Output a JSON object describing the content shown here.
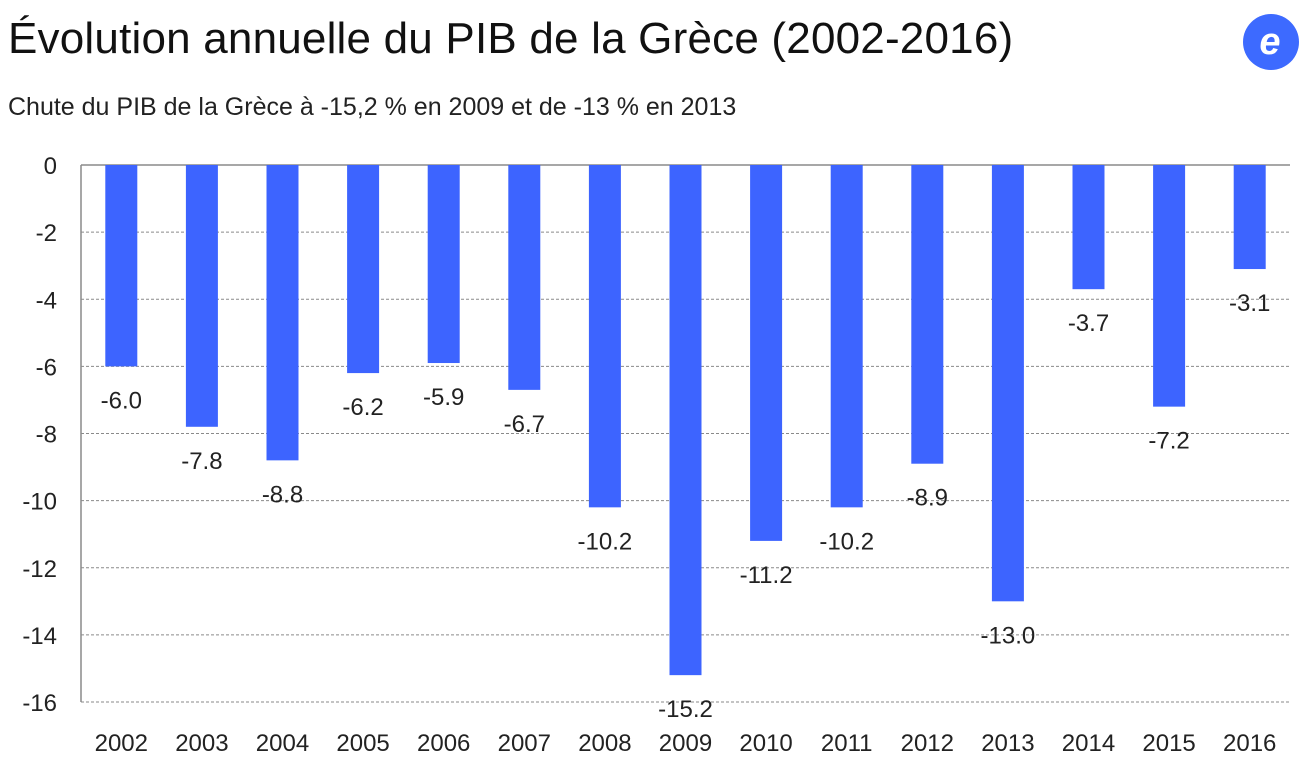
{
  "header": {
    "title": "Évolution annuelle du PIB de la Grèce (2002-2016)",
    "subtitle": "Chute du PIB de la Grèce à -15,2 % en 2009 et de -13 % en 2013"
  },
  "logo": {
    "icon": "e-logo-icon",
    "letter": "e",
    "color": "#3d6aff"
  },
  "chart_data": {
    "type": "bar",
    "categories": [
      "2002",
      "2003",
      "2004",
      "2005",
      "2006",
      "2007",
      "2008",
      "2009",
      "2010",
      "2011",
      "2012",
      "2013",
      "2014",
      "2015",
      "2016"
    ],
    "values": [
      -6.0,
      -7.8,
      -8.8,
      -6.2,
      -5.9,
      -6.7,
      -10.2,
      -15.2,
      -11.2,
      -10.2,
      -8.9,
      -13.0,
      -3.7,
      -7.2,
      -3.1
    ],
    "labels": [
      "-6.0",
      "-7.8",
      "-8.8",
      "-6.2",
      "-5.9",
      "-6.7",
      "-10.2",
      "-15.2",
      "-11.2",
      "-10.2",
      "-8.9",
      "-13.0",
      "-3.7",
      "-7.2",
      "-3.1"
    ],
    "ylim": [
      -16,
      0
    ],
    "yticks": [
      "0",
      "-2",
      "-4",
      "-6",
      "-8",
      "-10",
      "-12",
      "-14",
      "-16"
    ],
    "ytick_values": [
      0,
      -2,
      -4,
      -6,
      -8,
      -10,
      -12,
      -14,
      -16
    ],
    "grid": "horizontal dashed",
    "bar_color": "#3d64ff",
    "xlabel": "",
    "ylabel": ""
  }
}
